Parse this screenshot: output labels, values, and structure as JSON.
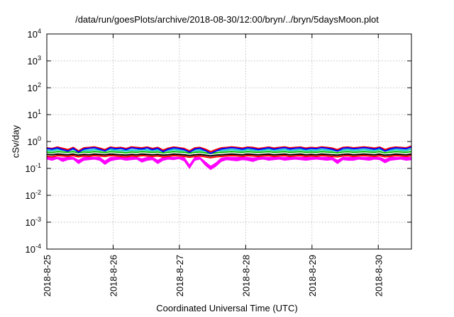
{
  "chart_data": {
    "type": "line",
    "title": "/data/run/goesPlots/archive/2018-08-30/12:00/bryn/../bryn/5daysMoon.plot",
    "xlabel": "Coordinated Universal Time (UTC)",
    "ylabel": "cSv/day",
    "y_scale": "log",
    "ylim": [
      0.0001,
      10000
    ],
    "y_ticks": [
      {
        "value": 0.0001,
        "base": "10",
        "exp": "-4"
      },
      {
        "value": 0.001,
        "base": "10",
        "exp": "-3"
      },
      {
        "value": 0.01,
        "base": "10",
        "exp": "-2"
      },
      {
        "value": 0.1,
        "base": "10",
        "exp": "-1"
      },
      {
        "value": 1,
        "base": "10",
        "exp": "0"
      },
      {
        "value": 10,
        "base": "10",
        "exp": "1"
      },
      {
        "value": 100,
        "base": "10",
        "exp": "2"
      },
      {
        "value": 1000,
        "base": "10",
        "exp": "3"
      },
      {
        "value": 10000,
        "base": "10",
        "exp": "4"
      }
    ],
    "xlim": [
      "2018-08-25 00:00",
      "2018-08-30 12:00"
    ],
    "x_ticks": [
      "2018-8-25",
      "2018-8-26",
      "2018-8-27",
      "2018-8-28",
      "2018-8-29",
      "2018-8-30"
    ],
    "grid": true,
    "legend": "none",
    "series": [
      {
        "color": "#ff00ff",
        "style": "filled-band",
        "values": [
          0.22,
          0.2,
          0.23,
          0.18,
          0.21,
          0.22,
          0.15,
          0.2,
          0.21,
          0.22,
          0.2,
          0.14,
          0.19,
          0.21,
          0.22,
          0.2,
          0.21,
          0.22,
          0.17,
          0.2,
          0.21,
          0.15,
          0.2,
          0.22,
          0.21,
          0.23,
          0.19,
          0.1,
          0.2,
          0.22,
          0.13,
          0.09,
          0.12,
          0.18,
          0.21,
          0.2,
          0.19,
          0.21,
          0.2,
          0.18,
          0.21,
          0.22,
          0.2,
          0.21,
          0.22,
          0.2,
          0.21,
          0.22,
          0.21,
          0.2,
          0.21,
          0.22,
          0.21,
          0.2,
          0.21,
          0.15,
          0.21,
          0.2,
          0.2,
          0.22,
          0.21,
          0.2,
          0.22,
          0.21,
          0.16,
          0.2,
          0.21,
          0.22,
          0.2,
          0.21
        ]
      },
      {
        "color": "#ff0000",
        "values": [
          0.28,
          0.27,
          0.3,
          0.29,
          0.28,
          0.3,
          0.27,
          0.29,
          0.28,
          0.3,
          0.29,
          0.28,
          0.3,
          0.29,
          0.28,
          0.27,
          0.29,
          0.28,
          0.3,
          0.29,
          0.28,
          0.29,
          0.27,
          0.28,
          0.3,
          0.29,
          0.28,
          0.26,
          0.28,
          0.29,
          0.27,
          0.25,
          0.27,
          0.28,
          0.29,
          0.3,
          0.29,
          0.28,
          0.3,
          0.29,
          0.28,
          0.29,
          0.3,
          0.28,
          0.29,
          0.3,
          0.28,
          0.29,
          0.3,
          0.28,
          0.29,
          0.28,
          0.3,
          0.29,
          0.28,
          0.27,
          0.29,
          0.3,
          0.28,
          0.29,
          0.3,
          0.29,
          0.28,
          0.3,
          0.27,
          0.28,
          0.3,
          0.29,
          0.28,
          0.3
        ]
      },
      {
        "color": "#000000",
        "values": [
          0.33,
          0.32,
          0.34,
          0.33,
          0.32,
          0.34,
          0.31,
          0.33,
          0.32,
          0.34,
          0.33,
          0.32,
          0.34,
          0.33,
          0.32,
          0.31,
          0.33,
          0.32,
          0.34,
          0.33,
          0.32,
          0.33,
          0.31,
          0.32,
          0.34,
          0.33,
          0.32,
          0.3,
          0.32,
          0.33,
          0.31,
          0.29,
          0.31,
          0.32,
          0.33,
          0.34,
          0.33,
          0.32,
          0.34,
          0.33,
          0.32,
          0.33,
          0.34,
          0.32,
          0.33,
          0.34,
          0.32,
          0.33,
          0.34,
          0.32,
          0.33,
          0.32,
          0.34,
          0.33,
          0.32,
          0.31,
          0.33,
          0.34,
          0.32,
          0.33,
          0.34,
          0.33,
          0.32,
          0.34,
          0.31,
          0.32,
          0.34,
          0.33,
          0.32,
          0.34
        ]
      },
      {
        "color": "#00c000",
        "values": [
          0.4,
          0.39,
          0.42,
          0.41,
          0.4,
          0.42,
          0.38,
          0.41,
          0.4,
          0.42,
          0.41,
          0.39,
          0.42,
          0.41,
          0.4,
          0.38,
          0.41,
          0.4,
          0.42,
          0.41,
          0.4,
          0.41,
          0.38,
          0.4,
          0.42,
          0.41,
          0.4,
          0.37,
          0.4,
          0.41,
          0.38,
          0.36,
          0.38,
          0.4,
          0.41,
          0.42,
          0.41,
          0.4,
          0.42,
          0.41,
          0.4,
          0.41,
          0.42,
          0.4,
          0.41,
          0.42,
          0.4,
          0.41,
          0.42,
          0.4,
          0.41,
          0.4,
          0.42,
          0.41,
          0.4,
          0.38,
          0.41,
          0.42,
          0.4,
          0.41,
          0.42,
          0.41,
          0.4,
          0.42,
          0.38,
          0.4,
          0.42,
          0.41,
          0.4,
          0.42
        ]
      },
      {
        "color": "#00c8c8",
        "values": [
          0.47,
          0.46,
          0.5,
          0.48,
          0.47,
          0.5,
          0.44,
          0.48,
          0.47,
          0.5,
          0.48,
          0.46,
          0.5,
          0.48,
          0.47,
          0.45,
          0.48,
          0.47,
          0.5,
          0.48,
          0.47,
          0.48,
          0.45,
          0.47,
          0.5,
          0.48,
          0.47,
          0.43,
          0.47,
          0.48,
          0.45,
          0.42,
          0.45,
          0.47,
          0.48,
          0.5,
          0.48,
          0.47,
          0.5,
          0.48,
          0.47,
          0.48,
          0.5,
          0.47,
          0.48,
          0.5,
          0.47,
          0.48,
          0.5,
          0.47,
          0.48,
          0.47,
          0.5,
          0.48,
          0.47,
          0.45,
          0.48,
          0.5,
          0.47,
          0.48,
          0.5,
          0.48,
          0.47,
          0.5,
          0.45,
          0.47,
          0.5,
          0.48,
          0.47,
          0.52
        ]
      },
      {
        "color": "#ff0000",
        "values": [
          0.58,
          0.55,
          0.62,
          0.56,
          0.5,
          0.6,
          0.45,
          0.58,
          0.6,
          0.63,
          0.57,
          0.5,
          0.62,
          0.58,
          0.6,
          0.55,
          0.63,
          0.6,
          0.58,
          0.62,
          0.55,
          0.6,
          0.48,
          0.57,
          0.62,
          0.59,
          0.55,
          0.45,
          0.58,
          0.6,
          0.52,
          0.42,
          0.5,
          0.58,
          0.6,
          0.63,
          0.6,
          0.57,
          0.62,
          0.6,
          0.55,
          0.58,
          0.62,
          0.57,
          0.6,
          0.63,
          0.58,
          0.6,
          0.62,
          0.57,
          0.6,
          0.58,
          0.63,
          0.6,
          0.57,
          0.5,
          0.6,
          0.62,
          0.58,
          0.6,
          0.63,
          0.6,
          0.57,
          0.62,
          0.5,
          0.58,
          0.62,
          0.6,
          0.58,
          0.68
        ]
      },
      {
        "color": "#0000ff",
        "values": [
          0.55,
          0.52,
          0.58,
          0.5,
          0.44,
          0.56,
          0.4,
          0.53,
          0.56,
          0.59,
          0.52,
          0.45,
          0.58,
          0.54,
          0.56,
          0.5,
          0.58,
          0.55,
          0.53,
          0.58,
          0.5,
          0.56,
          0.42,
          0.52,
          0.58,
          0.55,
          0.5,
          0.4,
          0.53,
          0.56,
          0.46,
          0.36,
          0.44,
          0.53,
          0.56,
          0.59,
          0.56,
          0.52,
          0.58,
          0.55,
          0.5,
          0.54,
          0.58,
          0.52,
          0.56,
          0.59,
          0.53,
          0.56,
          0.58,
          0.52,
          0.56,
          0.54,
          0.59,
          0.56,
          0.52,
          0.44,
          0.56,
          0.58,
          0.54,
          0.56,
          0.59,
          0.56,
          0.52,
          0.58,
          0.44,
          0.53,
          0.58,
          0.56,
          0.54,
          0.62
        ]
      }
    ]
  }
}
